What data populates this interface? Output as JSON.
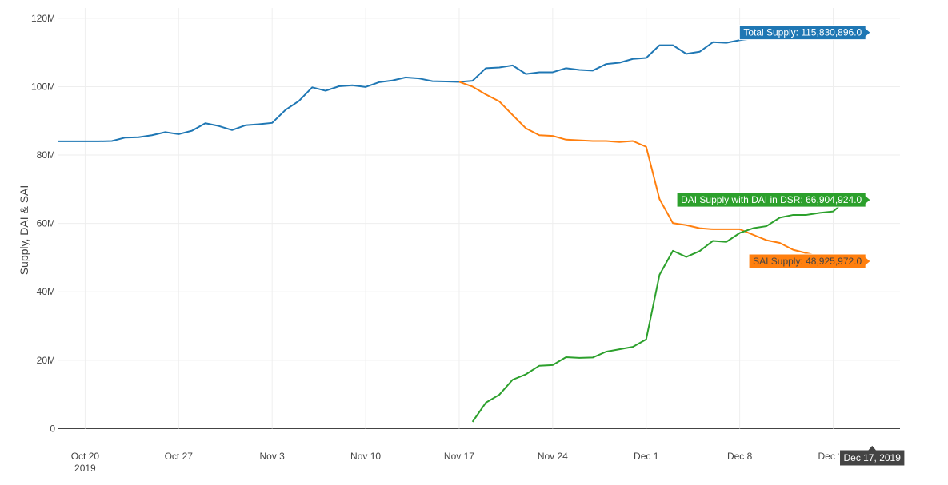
{
  "chart_data": {
    "type": "line",
    "title": "",
    "xlabel": "",
    "ylabel": "Supply, DAI & SAI",
    "x_tick_labels": [
      {
        "date": "2019-10-20",
        "label": "Oct 20",
        "sublabel": "2019"
      },
      {
        "date": "2019-10-27",
        "label": "Oct 27",
        "sublabel": ""
      },
      {
        "date": "2019-11-03",
        "label": "Nov 3",
        "sublabel": ""
      },
      {
        "date": "2019-11-10",
        "label": "Nov 10",
        "sublabel": ""
      },
      {
        "date": "2019-11-17",
        "label": "Nov 17",
        "sublabel": ""
      },
      {
        "date": "2019-11-24",
        "label": "Nov 24",
        "sublabel": ""
      },
      {
        "date": "2019-12-01",
        "label": "Dec 1",
        "sublabel": ""
      },
      {
        "date": "2019-12-08",
        "label": "Dec 8",
        "sublabel": ""
      },
      {
        "date": "2019-12-15",
        "label": "Dec 15",
        "sublabel": ""
      }
    ],
    "xlim": [
      "2019-10-18",
      "2019-12-20"
    ],
    "y_ticks": [
      0,
      20000000,
      40000000,
      60000000,
      80000000,
      100000000,
      120000000
    ],
    "y_tick_labels": [
      "0",
      "20M",
      "40M",
      "60M",
      "80M",
      "100M",
      "120M"
    ],
    "ylim": [
      -2000000,
      123000000
    ],
    "grid": true,
    "x_hover_label": "Dec 17, 2019",
    "series": [
      {
        "key": "total",
        "color": "#1f77b4",
        "hover_label": "Total Supply: 115,830,896.0",
        "points": [
          [
            "2019-10-18",
            84000000
          ],
          [
            "2019-10-19",
            84000000
          ],
          [
            "2019-10-20",
            84000000
          ],
          [
            "2019-10-21",
            84000000
          ],
          [
            "2019-10-22",
            84100000
          ],
          [
            "2019-10-23",
            85100000
          ],
          [
            "2019-10-24",
            85200000
          ],
          [
            "2019-10-25",
            85800000
          ],
          [
            "2019-10-26",
            86700000
          ],
          [
            "2019-10-27",
            86100000
          ],
          [
            "2019-10-28",
            87100000
          ],
          [
            "2019-10-29",
            89300000
          ],
          [
            "2019-10-30",
            88500000
          ],
          [
            "2019-10-31",
            87300000
          ],
          [
            "2019-11-01",
            88700000
          ],
          [
            "2019-11-02",
            89000000
          ],
          [
            "2019-11-03",
            89400000
          ],
          [
            "2019-11-04",
            93200000
          ],
          [
            "2019-11-05",
            95800000
          ],
          [
            "2019-11-06",
            99800000
          ],
          [
            "2019-11-07",
            98800000
          ],
          [
            "2019-11-08",
            100100000
          ],
          [
            "2019-11-09",
            100400000
          ],
          [
            "2019-11-10",
            99900000
          ],
          [
            "2019-11-11",
            101300000
          ],
          [
            "2019-11-12",
            101800000
          ],
          [
            "2019-11-13",
            102700000
          ],
          [
            "2019-11-14",
            102400000
          ],
          [
            "2019-11-15",
            101600000
          ],
          [
            "2019-11-16",
            101500000
          ],
          [
            "2019-11-17",
            101400000
          ],
          [
            "2019-11-18",
            101700000
          ],
          [
            "2019-11-19",
            105400000
          ],
          [
            "2019-11-20",
            105600000
          ],
          [
            "2019-11-21",
            106200000
          ],
          [
            "2019-11-22",
            103700000
          ],
          [
            "2019-11-23",
            104200000
          ],
          [
            "2019-11-24",
            104200000
          ],
          [
            "2019-11-25",
            105400000
          ],
          [
            "2019-11-26",
            104900000
          ],
          [
            "2019-11-27",
            104700000
          ],
          [
            "2019-11-28",
            106600000
          ],
          [
            "2019-11-29",
            107000000
          ],
          [
            "2019-11-30",
            108100000
          ],
          [
            "2019-12-01",
            108400000
          ],
          [
            "2019-12-02",
            112100000
          ],
          [
            "2019-12-03",
            112100000
          ],
          [
            "2019-12-04",
            109600000
          ],
          [
            "2019-12-05",
            110200000
          ],
          [
            "2019-12-06",
            113000000
          ],
          [
            "2019-12-07",
            112800000
          ],
          [
            "2019-12-08",
            113600000
          ],
          [
            "2019-12-09",
            114100000
          ],
          [
            "2019-12-10",
            114500000
          ],
          [
            "2019-12-11",
            114700000
          ],
          [
            "2019-12-12",
            115000000
          ],
          [
            "2019-12-13",
            115200000
          ],
          [
            "2019-12-14",
            115400000
          ],
          [
            "2019-12-15",
            115500000
          ],
          [
            "2019-12-16",
            115830896
          ]
        ]
      },
      {
        "key": "sai",
        "color": "#ff7f0e",
        "hover_label": "SAI Supply: 48,925,972.0",
        "points": [
          [
            "2019-11-17",
            101400000
          ],
          [
            "2019-11-18",
            100000000
          ],
          [
            "2019-11-19",
            97700000
          ],
          [
            "2019-11-20",
            95700000
          ],
          [
            "2019-11-21",
            91700000
          ],
          [
            "2019-11-22",
            87800000
          ],
          [
            "2019-11-23",
            85800000
          ],
          [
            "2019-11-24",
            85600000
          ],
          [
            "2019-11-25",
            84500000
          ],
          [
            "2019-11-26",
            84300000
          ],
          [
            "2019-11-27",
            84100000
          ],
          [
            "2019-11-28",
            84100000
          ],
          [
            "2019-11-29",
            83800000
          ],
          [
            "2019-11-30",
            84100000
          ],
          [
            "2019-12-01",
            82400000
          ],
          [
            "2019-12-02",
            67100000
          ],
          [
            "2019-12-03",
            60100000
          ],
          [
            "2019-12-04",
            59500000
          ],
          [
            "2019-12-05",
            58600000
          ],
          [
            "2019-12-06",
            58300000
          ],
          [
            "2019-12-07",
            58300000
          ],
          [
            "2019-12-08",
            58300000
          ],
          [
            "2019-12-09",
            56700000
          ],
          [
            "2019-12-10",
            55100000
          ],
          [
            "2019-12-11",
            54300000
          ],
          [
            "2019-12-12",
            52300000
          ],
          [
            "2019-12-13",
            51300000
          ],
          [
            "2019-12-14",
            50400000
          ],
          [
            "2019-12-15",
            49500000
          ],
          [
            "2019-12-16",
            48925972
          ]
        ]
      },
      {
        "key": "dai",
        "color": "#2ca02c",
        "hover_label": "DAI Supply with DAI in DSR: 66,904,924.0",
        "points": [
          [
            "2019-11-18",
            2000000
          ],
          [
            "2019-11-19",
            7600000
          ],
          [
            "2019-11-20",
            9900000
          ],
          [
            "2019-11-21",
            14300000
          ],
          [
            "2019-11-22",
            15900000
          ],
          [
            "2019-11-23",
            18400000
          ],
          [
            "2019-11-24",
            18600000
          ],
          [
            "2019-11-25",
            20900000
          ],
          [
            "2019-11-26",
            20700000
          ],
          [
            "2019-11-27",
            20800000
          ],
          [
            "2019-11-28",
            22500000
          ],
          [
            "2019-11-29",
            23200000
          ],
          [
            "2019-11-30",
            23900000
          ],
          [
            "2019-12-01",
            26100000
          ],
          [
            "2019-12-02",
            45000000
          ],
          [
            "2019-12-03",
            52000000
          ],
          [
            "2019-12-04",
            50200000
          ],
          [
            "2019-12-05",
            51900000
          ],
          [
            "2019-12-06",
            54900000
          ],
          [
            "2019-12-07",
            54600000
          ],
          [
            "2019-12-08",
            57200000
          ],
          [
            "2019-12-09",
            58600000
          ],
          [
            "2019-12-10",
            59200000
          ],
          [
            "2019-12-11",
            61700000
          ],
          [
            "2019-12-12",
            62500000
          ],
          [
            "2019-12-13",
            62500000
          ],
          [
            "2019-12-14",
            63100000
          ],
          [
            "2019-12-15",
            63500000
          ],
          [
            "2019-12-16",
            66904924
          ]
        ]
      }
    ]
  }
}
